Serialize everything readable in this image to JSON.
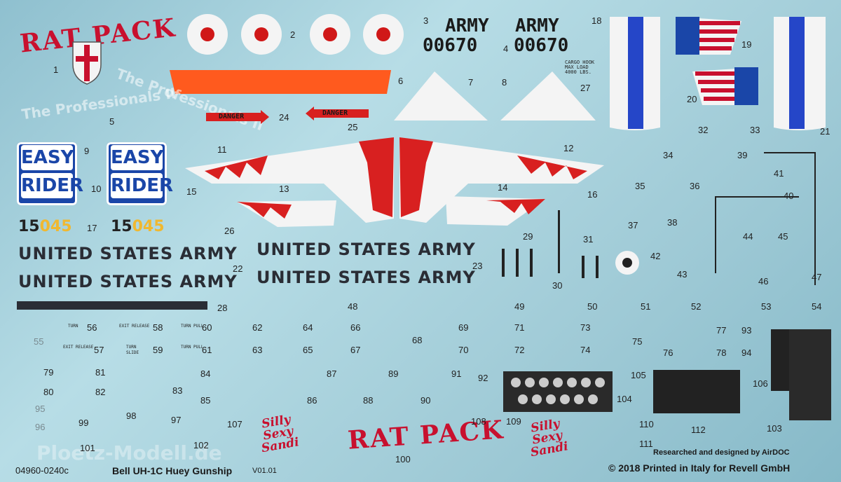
{
  "sheet": {
    "top_left_title": "RAT PACK",
    "bottom_title": "RAT PACK",
    "army_1": "ARMY",
    "army_2": "ARMY",
    "serial_1": "00670",
    "serial_2": "00670",
    "cargo_hook": "CARGO HOOK\nMAX LOAD\n4000 LBS.",
    "danger_1": "DANGER",
    "danger_2": "DANGER",
    "professionals": "The Professionals II",
    "easy_top": "EASY",
    "easy_bottom": "RIDER",
    "tail_number_a": "15",
    "tail_number_b": "045",
    "usa_text": "UNITED STATES ARMY",
    "silly_1": "Silly",
    "silly_2": "Sexy",
    "silly_3": "Sandi",
    "researched": "Researched and designed by AirDOC",
    "copyright": "© 2018 Printed in Italy for Revell GmbH",
    "code": "04960-0240c",
    "model": "Bell UH-1C Huey Gunship",
    "version": "V01.01",
    "watermark": "Ploetz-Modell.de",
    "exit_release": "EXIT RELEASE",
    "turn": "TURN",
    "slide": "SLIDE",
    "turn_pull": "TURN PULL"
  },
  "numbers": [
    "1",
    "2",
    "3",
    "4",
    "5",
    "6",
    "7",
    "8",
    "9",
    "10",
    "11",
    "12",
    "13",
    "14",
    "15",
    "16",
    "17",
    "18",
    "19",
    "20",
    "21",
    "22",
    "23",
    "24",
    "25",
    "26",
    "27",
    "28",
    "29",
    "30",
    "31",
    "32",
    "33",
    "34",
    "35",
    "36",
    "37",
    "38",
    "39",
    "40",
    "41",
    "42",
    "43",
    "44",
    "45",
    "46",
    "47",
    "48",
    "49",
    "50",
    "51",
    "52",
    "53",
    "54",
    "55",
    "56",
    "57",
    "58",
    "59",
    "60",
    "61",
    "62",
    "63",
    "64",
    "65",
    "66",
    "67",
    "68",
    "69",
    "70",
    "71",
    "72",
    "73",
    "74",
    "75",
    "76",
    "77",
    "78",
    "79",
    "80",
    "81",
    "82",
    "83",
    "84",
    "85",
    "86",
    "87",
    "88",
    "89",
    "90",
    "91",
    "92",
    "93",
    "94",
    "95",
    "96",
    "97",
    "98",
    "99",
    "100",
    "101",
    "102",
    "103",
    "104",
    "105",
    "106",
    "107",
    "108",
    "109",
    "110",
    "111",
    "112"
  ],
  "colors": {
    "sheet_bg": "#a6d2dc",
    "red": "#c8102e",
    "blue": "#1a46a8",
    "orange": "#ff5a1e",
    "yellow": "#f0b830"
  }
}
